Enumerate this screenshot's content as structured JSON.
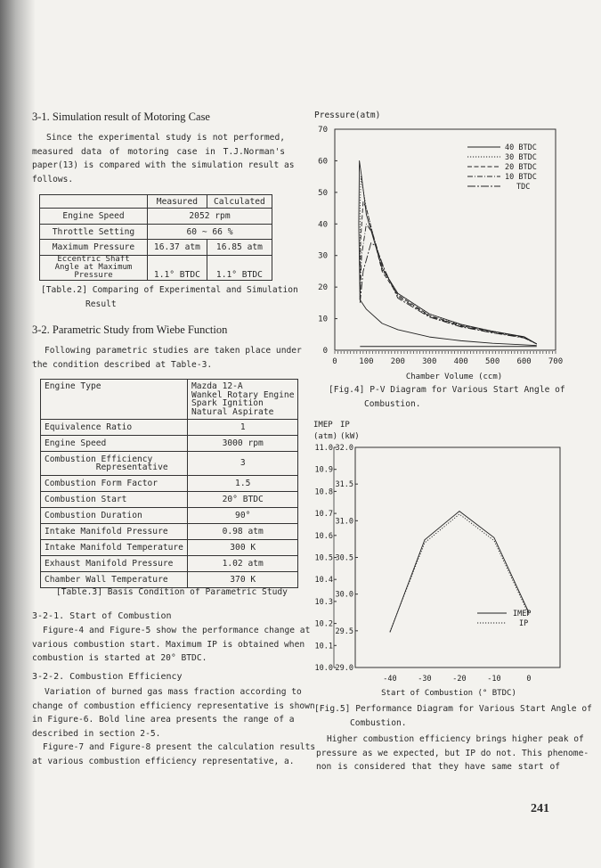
{
  "left": {
    "s31_heading": "3-1. Simulation result of Motoring Case",
    "s31_lines": [
      "Since the experimental study is not performed,",
      "measured data of motoring case in T.J.Norman's",
      "paper(13) is compared with the simulation result as",
      "follows."
    ],
    "table2": {
      "header": [
        "",
        "Measured",
        "Calculated"
      ],
      "rows": [
        [
          "Engine Speed",
          "2052 rpm"
        ],
        [
          "Throttle Setting",
          "60 ~ 66 %"
        ],
        [
          "Maximum Pressure",
          "16.37 atm",
          "16.85 atm"
        ],
        [
          "Eccentric Shaft Angle at Maximum Pressure",
          "1.1° BTDC",
          "1.1° BTDC"
        ]
      ],
      "caption_1": "[Table.2] Comparing of Experimental and Simulation",
      "caption_2": "Result"
    },
    "s32_heading": "3-2. Parametric Study from Wiebe Function",
    "s32_lines": [
      "Following parametric studies are taken place under",
      "the condition described at Table-3."
    ],
    "table3": {
      "rows": [
        [
          "Engine Type",
          "Mazda 12-A\nWankel Rotary Engine\nSpark Ignition\nNatural Aspirate"
        ],
        [
          "Equivalence Ratio",
          "1"
        ],
        [
          "Engine Speed",
          "3000 rpm"
        ],
        [
          "Combustion Efficiency\n          Representative",
          "3"
        ],
        [
          "Combustion Form Factor",
          "1.5"
        ],
        [
          "Combustion Start",
          "20° BTDC"
        ],
        [
          "Combustion Duration",
          "90°"
        ],
        [
          "Intake Manifold Pressure",
          "0.98 atm"
        ],
        [
          "Intake Manifold Temperature",
          "300 K"
        ],
        [
          "Exhaust Manifold Pressure",
          "1.02 atm"
        ],
        [
          "Chamber Wall Temperature",
          "370 K"
        ]
      ],
      "caption": "[Table.3] Basis Condition of Parametric Study"
    },
    "s321_heading": "3-2-1. Start of Combustion",
    "s321_lines": [
      "Figure-4 and Figure-5 show the performance change at",
      "various combustion start. Maximum IP is obtained when",
      "combustion is started at 20° BTDC."
    ],
    "s322_heading": "3-2-2. Combustion Efficiency",
    "s322_lines": [
      "Variation of burned gas mass fraction according to",
      "change of combustion efficiency representative is shown",
      "in Figure-6. Bold line area presents the range of a",
      "described in section 2-5.",
      "Figure-7 and Figure-8 present the calculation results",
      "at various combustion efficiency representative, a."
    ]
  },
  "right": {
    "fig4_caption_1": "[Fig.4] P-V Diagram for Various Start Angle of",
    "fig4_caption_2": "Combustion.",
    "fig5_caption_1": "[Fig.5] Performance Diagram for Various Start Angle of",
    "fig5_caption_2": "Combustion.",
    "para_lines": [
      "Higher combustion efficiency brings higher peak of",
      "pressure as we expected, but IP do not. This phenome-",
      "non is considered that they have same start of"
    ]
  },
  "page_number": "241",
  "chart_data": [
    {
      "type": "line",
      "ylabel": "Pressure(atm)",
      "xlabel": "Chamber Volume (ccm)",
      "xlim": [
        0,
        700
      ],
      "ylim": [
        0,
        70
      ],
      "xticks": [
        0,
        100,
        200,
        300,
        400,
        500,
        600,
        700
      ],
      "yticks": [
        0,
        10,
        20,
        30,
        40,
        50,
        60,
        70
      ],
      "legend_position": "top-right",
      "grid": false,
      "compression": [
        [
          640,
          1.5
        ],
        [
          600,
          1.7
        ],
        [
          500,
          2.2
        ],
        [
          400,
          3
        ],
        [
          300,
          4.2
        ],
        [
          200,
          6.5
        ],
        [
          150,
          8.5
        ],
        [
          100,
          13
        ],
        [
          80,
          16
        ]
      ],
      "intake_exhaust": [
        [
          640,
          1.2
        ],
        [
          80,
          1.2
        ]
      ],
      "series": [
        {
          "name": "40 BTDC",
          "dash": "solid",
          "points": [
            [
              80,
              16
            ],
            [
              76,
              40
            ],
            [
              78,
              60
            ],
            [
              85,
              55
            ],
            [
              100,
              43
            ],
            [
              150,
              26
            ],
            [
              200,
              18
            ],
            [
              300,
              11.5
            ],
            [
              400,
              8.2
            ],
            [
              500,
              6
            ],
            [
              600,
              4.3
            ],
            [
              640,
              2
            ]
          ]
        },
        {
          "name": "30 BTDC",
          "dash": "dotted",
          "points": [
            [
              80,
              16
            ],
            [
              80,
              45
            ],
            [
              83,
              55
            ],
            [
              100,
              45
            ],
            [
              150,
              25.5
            ],
            [
              200,
              18
            ],
            [
              300,
              11.5
            ],
            [
              400,
              8
            ],
            [
              500,
              6
            ],
            [
              600,
              4.2
            ],
            [
              640,
              2
            ]
          ]
        },
        {
          "name": "20 BTDC",
          "dash": "dashed",
          "points": [
            [
              80,
              16
            ],
            [
              82,
              35
            ],
            [
              90,
              47
            ],
            [
              100,
              45
            ],
            [
              150,
              25
            ],
            [
              200,
              17.5
            ],
            [
              300,
              11
            ],
            [
              400,
              7.8
            ],
            [
              500,
              5.9
            ],
            [
              600,
              4.1
            ],
            [
              640,
              2
            ]
          ]
        },
        {
          "name": "10 BTDC",
          "dash": "dashdot",
          "points": [
            [
              80,
              16
            ],
            [
              85,
              30
            ],
            [
              100,
              40
            ],
            [
              120,
              37
            ],
            [
              150,
              27
            ],
            [
              200,
              17
            ],
            [
              300,
              10.8
            ],
            [
              400,
              7.6
            ],
            [
              500,
              5.7
            ],
            [
              600,
              4
            ],
            [
              640,
              2
            ]
          ]
        },
        {
          "name": "TDC",
          "dash": "longdash",
          "points": [
            [
              80,
              15
            ],
            [
              90,
              25
            ],
            [
              115,
              34
            ],
            [
              130,
              33
            ],
            [
              160,
              25
            ],
            [
              200,
              16.5
            ],
            [
              300,
              10.5
            ],
            [
              400,
              7.4
            ],
            [
              500,
              5.5
            ],
            [
              600,
              3.9
            ],
            [
              640,
              2
            ]
          ]
        }
      ]
    },
    {
      "type": "line",
      "ylabel_left": [
        "IMEP",
        "(atm)"
      ],
      "ylabel_right": [
        "IP",
        "(kW)"
      ],
      "xlabel": "Start of Combustion (° BTDC)",
      "xlim": [
        -50,
        9
      ],
      "ylim_left": [
        10.0,
        11.0
      ],
      "ylim_right": [
        29.0,
        32.0
      ],
      "xticks": [
        -40,
        -30,
        -20,
        -10,
        0
      ],
      "yticks_left": [
        "10.0",
        "10.1",
        "10.2",
        "10.3",
        "10.4",
        "10.5",
        "10.6",
        "10.7",
        "10.8",
        "10.9",
        "11.0"
      ],
      "yticks_right": [
        "29.0",
        "29.5",
        "30.0",
        "30.5",
        "31.0",
        "31.5",
        "32.0"
      ],
      "legend_position": "bottom-right",
      "x": [
        -40,
        -30,
        -20,
        -10,
        0
      ],
      "series": [
        {
          "name": "IMEP",
          "axis": "left",
          "dash": "solid",
          "values": [
            10.16,
            10.58,
            10.71,
            10.59,
            10.25
          ]
        },
        {
          "name": "IP",
          "axis": "right",
          "dash": "dotted",
          "values": [
            29.49,
            30.7,
            31.09,
            30.73,
            29.72
          ]
        }
      ]
    }
  ]
}
